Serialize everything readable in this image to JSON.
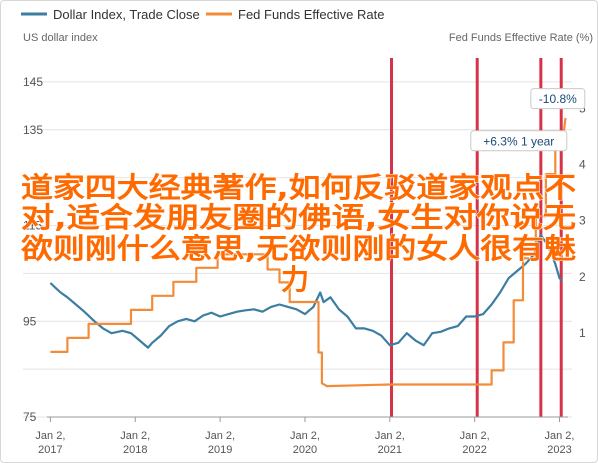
{
  "chart_data": {
    "type": "line",
    "legend_position": "top-left",
    "grid": "horizontal",
    "series": [
      {
        "name": "Dollar Index, Trade Close",
        "color": "#3b7ea1",
        "axis": "left",
        "points": [
          [
            2017.0,
            103
          ],
          [
            2017.06,
            102
          ],
          [
            2017.12,
            101
          ],
          [
            2017.2,
            100
          ],
          [
            2017.3,
            98.5
          ],
          [
            2017.4,
            97
          ],
          [
            2017.52,
            95
          ],
          [
            2017.62,
            93.5
          ],
          [
            2017.72,
            92.5
          ],
          [
            2017.85,
            93
          ],
          [
            2017.95,
            92.5
          ],
          [
            2018.05,
            91
          ],
          [
            2018.15,
            89.5
          ],
          [
            2018.2,
            90.5
          ],
          [
            2018.3,
            92
          ],
          [
            2018.4,
            94
          ],
          [
            2018.5,
            95
          ],
          [
            2018.6,
            95.5
          ],
          [
            2018.7,
            95
          ],
          [
            2018.8,
            96.2
          ],
          [
            2018.9,
            96.8
          ],
          [
            2019.0,
            96
          ],
          [
            2019.1,
            96.5
          ],
          [
            2019.2,
            97
          ],
          [
            2019.3,
            97.3
          ],
          [
            2019.4,
            97.5
          ],
          [
            2019.5,
            97
          ],
          [
            2019.6,
            98
          ],
          [
            2019.7,
            98.5
          ],
          [
            2019.8,
            98
          ],
          [
            2019.9,
            97.5
          ],
          [
            2020.0,
            96.5
          ],
          [
            2020.1,
            98
          ],
          [
            2020.18,
            101
          ],
          [
            2020.22,
            99
          ],
          [
            2020.3,
            100
          ],
          [
            2020.4,
            97.5
          ],
          [
            2020.5,
            96
          ],
          [
            2020.6,
            93.5
          ],
          [
            2020.7,
            93.5
          ],
          [
            2020.8,
            93
          ],
          [
            2020.9,
            92
          ],
          [
            2021.0,
            90
          ],
          [
            2021.1,
            90.5
          ],
          [
            2021.2,
            92.5
          ],
          [
            2021.3,
            91
          ],
          [
            2021.4,
            90
          ],
          [
            2021.5,
            92.5
          ],
          [
            2021.6,
            92.8
          ],
          [
            2021.7,
            93.5
          ],
          [
            2021.8,
            94
          ],
          [
            2021.9,
            96
          ],
          [
            2022.0,
            96
          ],
          [
            2022.1,
            96.5
          ],
          [
            2022.2,
            98.5
          ],
          [
            2022.3,
            101
          ],
          [
            2022.4,
            104
          ],
          [
            2022.5,
            105.5
          ],
          [
            2022.6,
            107
          ],
          [
            2022.7,
            109
          ],
          [
            2022.78,
            113
          ],
          [
            2022.86,
            111
          ],
          [
            2022.95,
            107
          ],
          [
            2023.0,
            104
          ],
          [
            2023.03,
            103.5
          ]
        ]
      },
      {
        "name": "Fed Funds Effective Rate",
        "color": "#f28c38",
        "axis": "right",
        "points": [
          [
            2017.0,
            0.66
          ],
          [
            2017.2,
            0.66
          ],
          [
            2017.2,
            0.91
          ],
          [
            2017.45,
            0.91
          ],
          [
            2017.45,
            1.16
          ],
          [
            2017.95,
            1.16
          ],
          [
            2017.95,
            1.41
          ],
          [
            2018.2,
            1.41
          ],
          [
            2018.2,
            1.66
          ],
          [
            2018.45,
            1.66
          ],
          [
            2018.45,
            1.91
          ],
          [
            2018.72,
            1.91
          ],
          [
            2018.72,
            2.16
          ],
          [
            2018.97,
            2.16
          ],
          [
            2018.97,
            2.4
          ],
          [
            2019.56,
            2.4
          ],
          [
            2019.56,
            2.13
          ],
          [
            2019.7,
            2.13
          ],
          [
            2019.7,
            1.9
          ],
          [
            2019.82,
            1.9
          ],
          [
            2019.82,
            1.55
          ],
          [
            2020.16,
            1.55
          ],
          [
            2020.16,
            0.65
          ],
          [
            2020.2,
            0.65
          ],
          [
            2020.2,
            0.1
          ],
          [
            2020.26,
            0.05
          ],
          [
            2021.0,
            0.08
          ],
          [
            2022.0,
            0.08
          ],
          [
            2022.2,
            0.08
          ],
          [
            2022.2,
            0.33
          ],
          [
            2022.34,
            0.33
          ],
          [
            2022.34,
            0.83
          ],
          [
            2022.46,
            0.83
          ],
          [
            2022.46,
            1.58
          ],
          [
            2022.57,
            1.58
          ],
          [
            2022.57,
            2.33
          ],
          [
            2022.72,
            2.33
          ],
          [
            2022.72,
            3.08
          ],
          [
            2022.84,
            3.08
          ],
          [
            2022.84,
            3.83
          ],
          [
            2022.95,
            3.83
          ],
          [
            2022.95,
            4.33
          ],
          [
            2023.05,
            4.33
          ],
          [
            2023.05,
            4.58
          ],
          [
            2023.07,
            4.83
          ]
        ]
      }
    ],
    "x_axis": {
      "range": [
        2016.96,
        2023.1
      ],
      "ticks": [
        {
          "value": 2017,
          "line1": "Jan 2,",
          "line2": "2017"
        },
        {
          "value": 2018,
          "line1": "Jan 2,",
          "line2": "2018"
        },
        {
          "value": 2019,
          "line1": "Jan 2,",
          "line2": "2019"
        },
        {
          "value": 2020,
          "line1": "Jan 2,",
          "line2": "2020"
        },
        {
          "value": 2021,
          "line1": "Jan 2,",
          "line2": "2021"
        },
        {
          "value": 2022,
          "line1": "Jan 2,",
          "line2": "2022"
        },
        {
          "value": 2023,
          "line1": "Jan 2,",
          "line2": "2023"
        }
      ]
    },
    "y_left": {
      "label": "US dollar index",
      "range": [
        75,
        150
      ],
      "ticks": [
        75,
        95,
        115,
        135
      ],
      "tick_labels": [
        "75",
        "95",
        "115",
        "135"
      ],
      "gridlines": [
        75,
        85,
        95,
        105,
        115,
        125,
        135,
        145
      ],
      "top_tick": 145,
      "top_tick_label": "145"
    },
    "y_right": {
      "label": "Fed Funds Effective Rate (%)",
      "range": [
        -0.5,
        5.9
      ],
      "ticks": [
        1,
        2,
        3,
        4,
        5
      ],
      "tick_labels": [
        "1",
        "2",
        "3",
        "4",
        "5"
      ]
    },
    "vertical_markers": [
      {
        "x": 2021.02,
        "color": "#d63346"
      },
      {
        "x": 2022.03,
        "color": "#d63346"
      },
      {
        "x": 2022.78,
        "color": "#d63346"
      },
      {
        "x": 2023.02,
        "color": "#d63346"
      }
    ],
    "annotations": [
      {
        "text": "-10.8%",
        "x": 2022.98,
        "y_left": 141.5
      },
      {
        "text": "+6.3% 1 year",
        "x": 2022.52,
        "y_left": 132.7
      }
    ]
  },
  "overlay_text": {
    "line1": "道家四大经典著作,如何反驳道家观点不",
    "line2": "对,适合发朋友圈的佛语,女生对你说无",
    "line3": "欲则刚什么意思,无欲则刚的女人很有魅",
    "line4": "力"
  }
}
